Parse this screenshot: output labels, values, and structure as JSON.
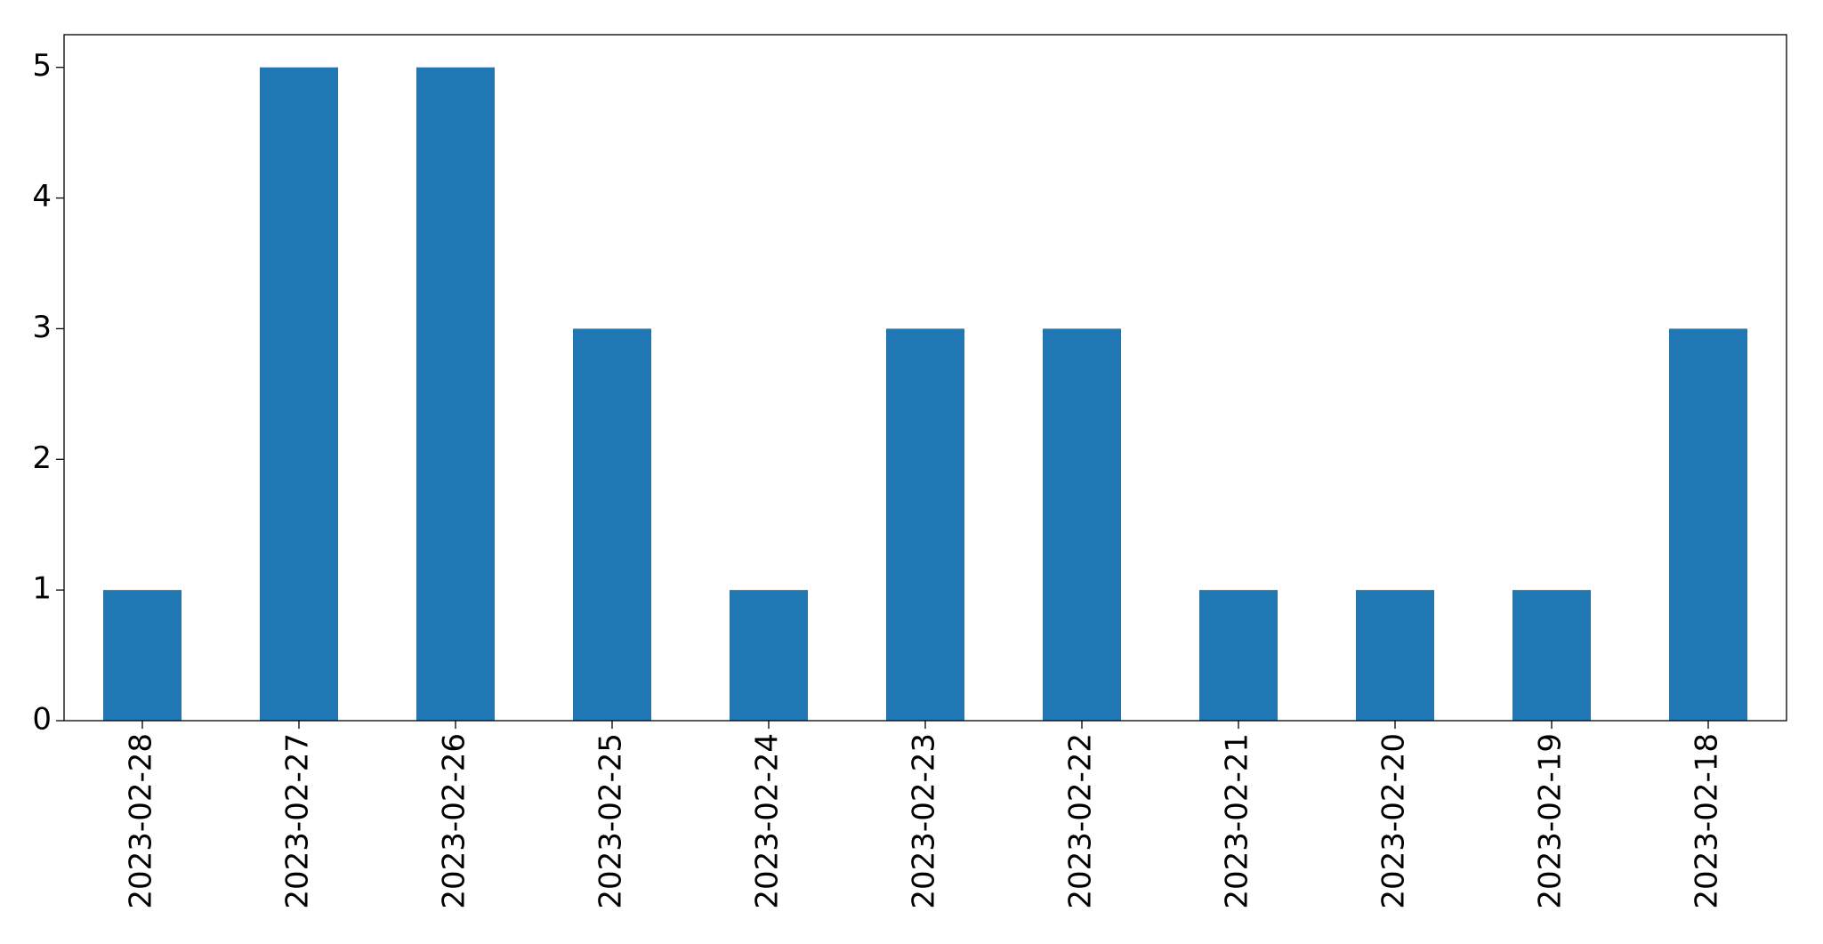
{
  "chart_data": {
    "type": "bar",
    "categories": [
      "2023-02-28",
      "2023-02-27",
      "2023-02-26",
      "2023-02-25",
      "2023-02-24",
      "2023-02-23",
      "2023-02-22",
      "2023-02-21",
      "2023-02-20",
      "2023-02-19",
      "2023-02-18"
    ],
    "values": [
      1,
      5,
      5,
      3,
      1,
      3,
      3,
      1,
      1,
      1,
      3
    ],
    "color": "#1f77b4",
    "ylim": [
      0,
      5.25
    ],
    "yticks": [
      0,
      1,
      2,
      3,
      4,
      5
    ],
    "grid": false
  }
}
